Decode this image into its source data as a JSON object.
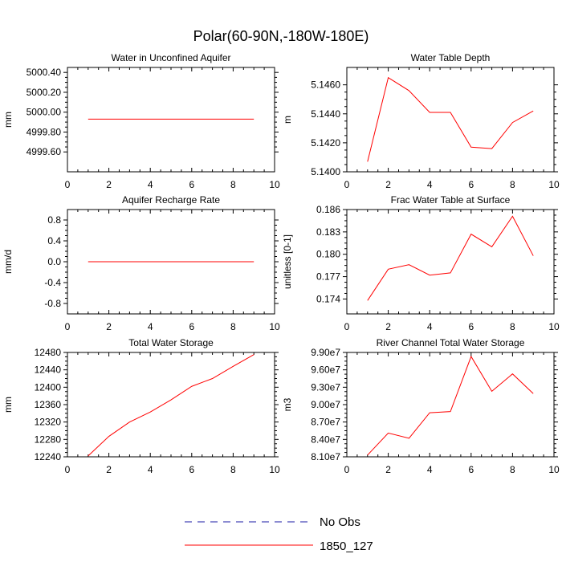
{
  "figure_title": "Polar(60-90N,-180W-180E)",
  "colors": {
    "series": "#ff0000",
    "obs": "#1a1aa6",
    "axis": "#000000",
    "background": "#ffffff"
  },
  "legend": {
    "entries": [
      {
        "label": "No Obs",
        "style": "dashed",
        "color": "#1a1aa6"
      },
      {
        "label": "1850_127",
        "style": "solid",
        "color": "#ff0000"
      }
    ]
  },
  "chart_data": [
    {
      "type": "line",
      "title": "Water in Unconfined Aquifer",
      "xlabel": "",
      "ylabel": "mm",
      "xlim": [
        0,
        10
      ],
      "ylim": [
        4999.4,
        5000.45
      ],
      "xticks": [
        0,
        2,
        4,
        6,
        8,
        10
      ],
      "xtick_labels": [
        "0",
        "2",
        "4",
        "6",
        "8",
        "10"
      ],
      "yticks": [
        4999.6,
        4999.8,
        5000.0,
        5000.2,
        5000.4
      ],
      "ytick_labels": [
        "4999.60",
        "4999.80",
        "5000.00",
        "5000.20",
        "5000.40"
      ],
      "series": [
        {
          "name": "1850_127",
          "x": [
            1,
            2,
            3,
            4,
            5,
            6,
            7,
            8,
            9
          ],
          "values": [
            4999.93,
            4999.93,
            4999.93,
            4999.93,
            4999.93,
            4999.93,
            4999.93,
            4999.93,
            4999.93
          ]
        }
      ]
    },
    {
      "type": "line",
      "title": "Water Table Depth",
      "xlabel": "",
      "ylabel": "m",
      "xlim": [
        0,
        10
      ],
      "ylim": [
        5.14,
        5.1472
      ],
      "xticks": [
        0,
        2,
        4,
        6,
        8,
        10
      ],
      "xtick_labels": [
        "0",
        "2",
        "4",
        "6",
        "8",
        "10"
      ],
      "yticks": [
        5.14,
        5.142,
        5.144,
        5.146
      ],
      "ytick_labels": [
        "5.1400",
        "5.1420",
        "5.1440",
        "5.1460"
      ],
      "series": [
        {
          "name": "1850_127",
          "x": [
            1,
            2,
            3,
            4,
            5,
            6,
            7,
            8,
            9
          ],
          "values": [
            5.1407,
            5.1465,
            5.1456,
            5.1441,
            5.1441,
            5.1417,
            5.1416,
            5.1434,
            5.1442
          ]
        }
      ]
    },
    {
      "type": "line",
      "title": "Aquifer Recharge Rate",
      "xlabel": "",
      "ylabel": "mm/d",
      "xlim": [
        0,
        10
      ],
      "ylim": [
        -1.0,
        1.0
      ],
      "xticks": [
        0,
        2,
        4,
        6,
        8,
        10
      ],
      "xtick_labels": [
        "0",
        "2",
        "4",
        "6",
        "8",
        "10"
      ],
      "yticks": [
        -0.8,
        -0.4,
        0.0,
        0.4,
        0.8
      ],
      "ytick_labels": [
        "-0.8",
        "-0.4",
        "0.0",
        "0.4",
        "0.8"
      ],
      "series": [
        {
          "name": "1850_127",
          "x": [
            1,
            2,
            3,
            4,
            5,
            6,
            7,
            8,
            9
          ],
          "values": [
            0,
            0,
            0,
            0,
            0,
            0,
            0,
            0,
            0
          ]
        }
      ]
    },
    {
      "type": "line",
      "title": "Frac Water Table at Surface",
      "xlabel": "",
      "ylabel": "unitless [0-1]",
      "xlim": [
        0,
        10
      ],
      "ylim": [
        0.172,
        0.186
      ],
      "xticks": [
        0,
        2,
        4,
        6,
        8,
        10
      ],
      "xtick_labels": [
        "0",
        "2",
        "4",
        "6",
        "8",
        "10"
      ],
      "yticks": [
        0.174,
        0.177,
        0.18,
        0.183,
        0.186
      ],
      "ytick_labels": [
        "0.174",
        "0.177",
        "0.180",
        "0.183",
        "0.186"
      ],
      "series": [
        {
          "name": "1850_127",
          "x": [
            1,
            2,
            3,
            4,
            5,
            6,
            7,
            8,
            9
          ],
          "values": [
            0.1738,
            0.178,
            0.1786,
            0.1772,
            0.1775,
            0.1827,
            0.181,
            0.1851,
            0.1798
          ]
        }
      ]
    },
    {
      "type": "line",
      "title": "Total Water Storage",
      "xlabel": "",
      "ylabel": "mm",
      "xlim": [
        0,
        10
      ],
      "ylim": [
        12240,
        12480
      ],
      "xticks": [
        0,
        2,
        4,
        6,
        8,
        10
      ],
      "xtick_labels": [
        "0",
        "2",
        "4",
        "6",
        "8",
        "10"
      ],
      "yticks": [
        12240,
        12280,
        12320,
        12360,
        12400,
        12440,
        12480
      ],
      "ytick_labels": [
        "12240",
        "12280",
        "12320",
        "12360",
        "12400",
        "12440",
        "12480"
      ],
      "series": [
        {
          "name": "1850_127",
          "x": [
            1,
            2,
            3,
            4,
            5,
            6,
            7,
            8,
            9
          ],
          "values": [
            12242,
            12287,
            12320,
            12343,
            12371,
            12402,
            12420,
            12448,
            12475
          ]
        }
      ]
    },
    {
      "type": "line",
      "title": "River Channel Total Water Storage",
      "xlabel": "",
      "ylabel": "m3",
      "xlim": [
        0,
        10
      ],
      "ylim": [
        81000000,
        99000000
      ],
      "xticks": [
        0,
        2,
        4,
        6,
        8,
        10
      ],
      "xtick_labels": [
        "0",
        "2",
        "4",
        "6",
        "8",
        "10"
      ],
      "yticks": [
        81000000,
        84000000,
        87000000,
        90000000,
        93000000,
        96000000,
        99000000
      ],
      "ytick_labels": [
        "8.10e7",
        "8.40e7",
        "8.70e7",
        "9.00e7",
        "9.30e7",
        "9.60e7",
        "9.90e7"
      ],
      "series": [
        {
          "name": "1850_127",
          "x": [
            1,
            2,
            3,
            4,
            5,
            6,
            7,
            8,
            9
          ],
          "values": [
            81300000,
            85100000,
            84200000,
            88600000,
            88800000,
            98300000,
            92300000,
            95300000,
            91900000
          ]
        }
      ]
    }
  ]
}
